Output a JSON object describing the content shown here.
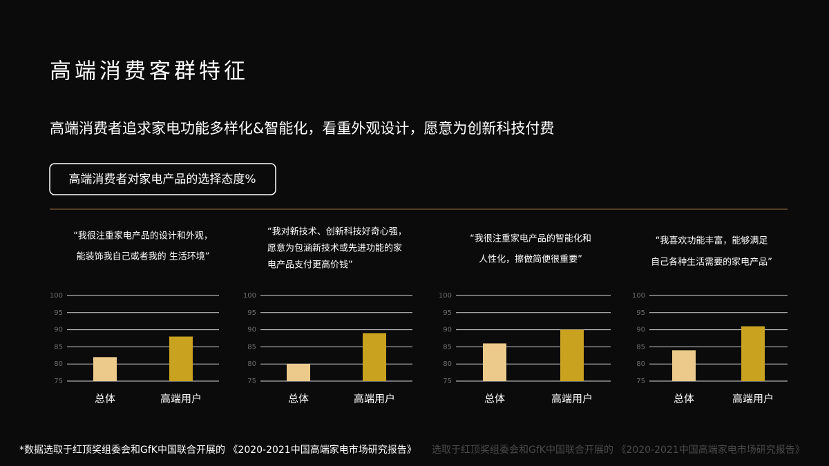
{
  "title": "高端消费客群特征",
  "subtitle": "高端消费者追求家电功能多样化&智能化，看重外观设计，愿意为创新科技付费",
  "section_label": "高端消费者对家电产品的选择态度%",
  "footnote": "*数据选取于红顶奖组委会和GfK中国联合开展的 《2020-2021中国高端家电市场研究报告》",
  "footnote_shadow": "选取于红顶奖组委会和GfK中国联合开展的 《2020-2021中国高端家电市场研究报告》",
  "chart_data": [
    {
      "type": "bar",
      "title": [
        "“我很注重家电产品的设计和外观，",
        "能装饰我自己或者我的 生活环境”"
      ],
      "categories": [
        "总体",
        "高端用户"
      ],
      "values": [
        82,
        88
      ],
      "colors": [
        "#ecca8b",
        "#c9a220"
      ],
      "ylim": [
        75,
        100
      ],
      "yticks": [
        75,
        80,
        85,
        90,
        95,
        100
      ],
      "grid": true
    },
    {
      "type": "bar",
      "title": [
        "“我对新技术、创新科技好奇心强，",
        "愿意为包涵新技术或先进功能的家",
        "电产品支付更高价钱”"
      ],
      "categories": [
        "总体",
        "高端用户"
      ],
      "values": [
        80,
        89
      ],
      "colors": [
        "#ecca8b",
        "#c9a220"
      ],
      "ylim": [
        75,
        100
      ],
      "yticks": [
        75,
        80,
        85,
        90,
        95,
        100
      ],
      "grid": true
    },
    {
      "type": "bar",
      "title": [
        "“我很注重家电产品的智能化和",
        "人性化，擦做简便很重要”"
      ],
      "categories": [
        "总体",
        "高端用户"
      ],
      "values": [
        86,
        90
      ],
      "colors": [
        "#ecca8b",
        "#c9a220"
      ],
      "ylim": [
        75,
        100
      ],
      "yticks": [
        75,
        80,
        85,
        90,
        95,
        100
      ],
      "grid": true
    },
    {
      "type": "bar",
      "title": [
        "“我喜欢功能丰富，能够满足",
        "自己各种生活需要的家电产品”"
      ],
      "categories": [
        "总体",
        "高端用户"
      ],
      "values": [
        84,
        91
      ],
      "colors": [
        "#ecca8b",
        "#c9a220"
      ],
      "ylim": [
        75,
        100
      ],
      "yticks": [
        75,
        80,
        85,
        90,
        95,
        100
      ],
      "grid": true
    }
  ]
}
